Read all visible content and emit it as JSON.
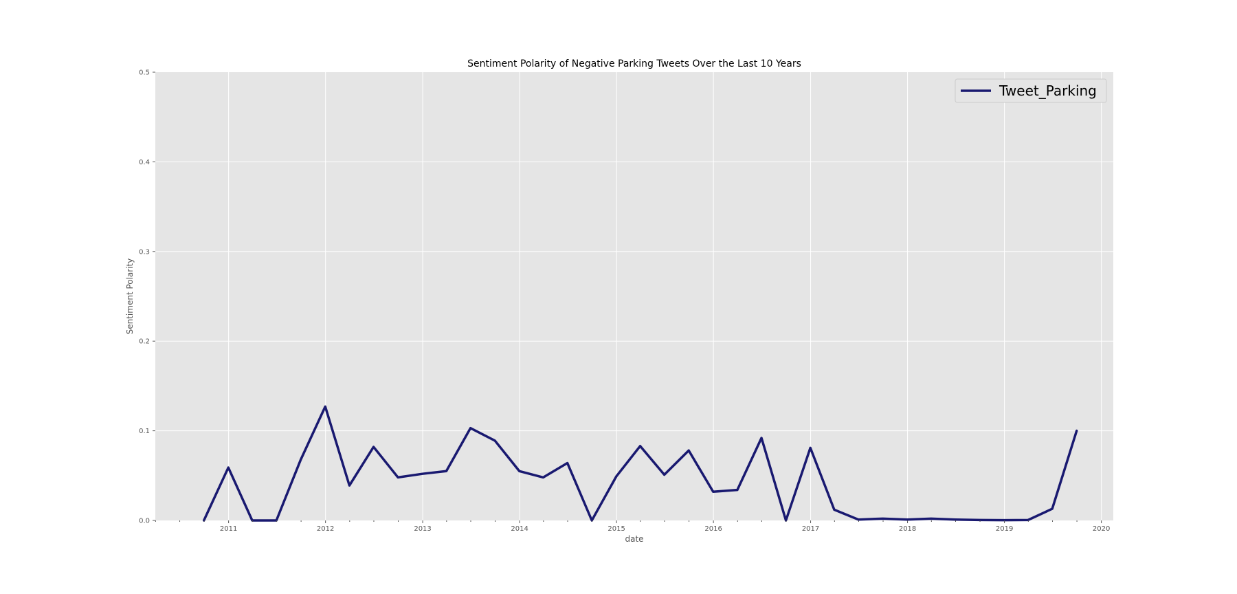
{
  "colors": {
    "plot_background": "#e5e5e5",
    "grid": "#ffffff",
    "series_line": "#191970",
    "tick": "#555555"
  },
  "chart_data": {
    "type": "line",
    "title": "Sentiment Polarity of Negative Parking Tweets Over the Last 10 Years",
    "xlabel": "date",
    "ylabel": "Sentiment Polarity",
    "xlim": [
      "2010-03-31",
      "2020-02-15"
    ],
    "ylim": [
      0,
      0.5
    ],
    "x_ticks": [
      "2011",
      "2012",
      "2013",
      "2014",
      "2015",
      "2016",
      "2017",
      "2018",
      "2019",
      "2020"
    ],
    "y_ticks": [
      "0.0",
      "0.1",
      "0.2",
      "0.3",
      "0.4",
      "0.5"
    ],
    "grid": true,
    "legend_position": "top-right",
    "series": [
      {
        "name": "Tweet_Parking",
        "color": "#191970",
        "x": [
          "2010-09-30",
          "2010-12-31",
          "2011-03-31",
          "2011-06-30",
          "2011-09-30",
          "2011-12-31",
          "2012-03-31",
          "2012-06-30",
          "2012-09-30",
          "2012-12-31",
          "2013-03-31",
          "2013-06-30",
          "2013-09-30",
          "2013-12-31",
          "2014-03-31",
          "2014-06-30",
          "2014-09-30",
          "2014-12-31",
          "2015-03-31",
          "2015-06-30",
          "2015-09-30",
          "2015-12-31",
          "2016-03-31",
          "2016-06-30",
          "2016-09-30",
          "2016-12-31",
          "2017-03-31",
          "2017-06-30",
          "2017-09-30",
          "2017-12-31",
          "2018-03-31",
          "2018-06-30",
          "2018-09-30",
          "2018-12-31",
          "2019-03-31",
          "2019-06-30",
          "2019-09-30"
        ],
        "values": [
          0.0,
          0.059,
          0.0,
          0.0,
          0.068,
          0.127,
          0.039,
          0.082,
          0.048,
          0.052,
          0.055,
          0.103,
          0.089,
          0.055,
          0.048,
          0.064,
          0.0,
          0.049,
          0.083,
          0.051,
          0.078,
          0.032,
          0.034,
          0.092,
          0.0,
          0.081,
          0.012,
          0.001,
          0.002,
          0.001,
          0.002,
          0.001,
          0.0005,
          0.0003,
          0.0005,
          0.013,
          0.1
        ]
      }
    ]
  }
}
